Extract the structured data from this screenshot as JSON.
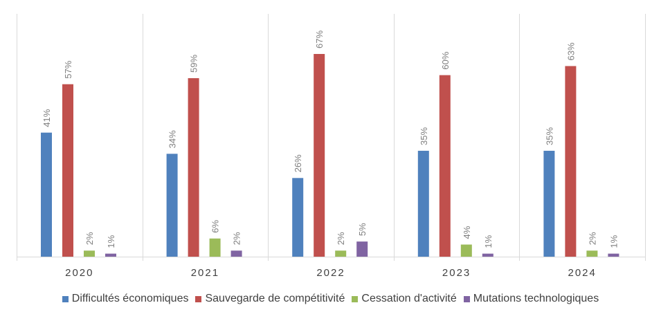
{
  "chart_data": {
    "type": "bar",
    "categories": [
      "2020",
      "2021",
      "2022",
      "2023",
      "2024"
    ],
    "series": [
      {
        "name": "Difficultés économiques",
        "values": [
          41,
          34,
          26,
          35,
          35
        ],
        "labels": [
          "41%",
          "34%",
          "26%",
          "35%",
          "35%"
        ],
        "color": "#4f81bd"
      },
      {
        "name": "Sauvegarde de compétitivité",
        "values": [
          57,
          59,
          67,
          60,
          63
        ],
        "labels": [
          "57%",
          "59%",
          "67%",
          "60%",
          "63%"
        ],
        "color": "#c0504d"
      },
      {
        "name": "Cessation d'activité",
        "values": [
          2,
          6,
          2,
          4,
          2
        ],
        "labels": [
          "2%",
          "6%",
          "2%",
          "4%",
          "2%"
        ],
        "color": "#9bbb59"
      },
      {
        "name": "Mutations technologiques",
        "values": [
          1,
          2,
          5,
          1,
          1
        ],
        "labels": [
          "1%",
          "2%",
          "5%",
          "1%",
          "1%"
        ],
        "color": "#8064a2"
      }
    ],
    "ylim": [
      0,
      67
    ],
    "grid": false,
    "legend_position": "bottom",
    "axis_color": "#d9d9d9",
    "label_color": "#7f7f7f"
  }
}
